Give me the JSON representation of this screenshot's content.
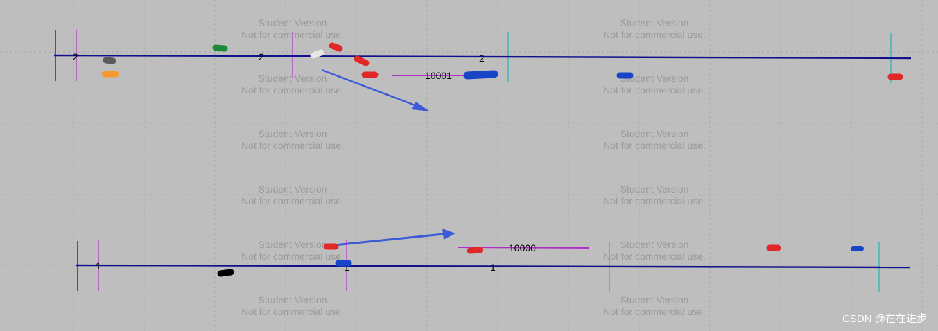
{
  "watermark": {
    "line1": "Student Version",
    "line2": "Not for commercial use."
  },
  "upper_track": {
    "lane_labels": [
      "2",
      "2",
      "2"
    ],
    "segment_label": "10001"
  },
  "lower_track": {
    "lane_labels": [
      "1",
      "1",
      "1"
    ],
    "segment_label": "10000"
  },
  "credit": "CSDN @在在进步",
  "colors": {
    "background": "#bebebe",
    "grid": "#a8a8a8",
    "road": "#10108a",
    "magenta_marker": "#b12fc9",
    "cyan_marker": "#22b5b5",
    "arrow": "#3a5ad6",
    "vehicle_red": "#e02828",
    "vehicle_blue": "#1845c8",
    "vehicle_green": "#1b8a3a",
    "vehicle_gray": "#5a5a5a",
    "vehicle_orange": "#f59a30",
    "vehicle_white": "#e6e6e6",
    "vehicle_black": "#000000"
  }
}
